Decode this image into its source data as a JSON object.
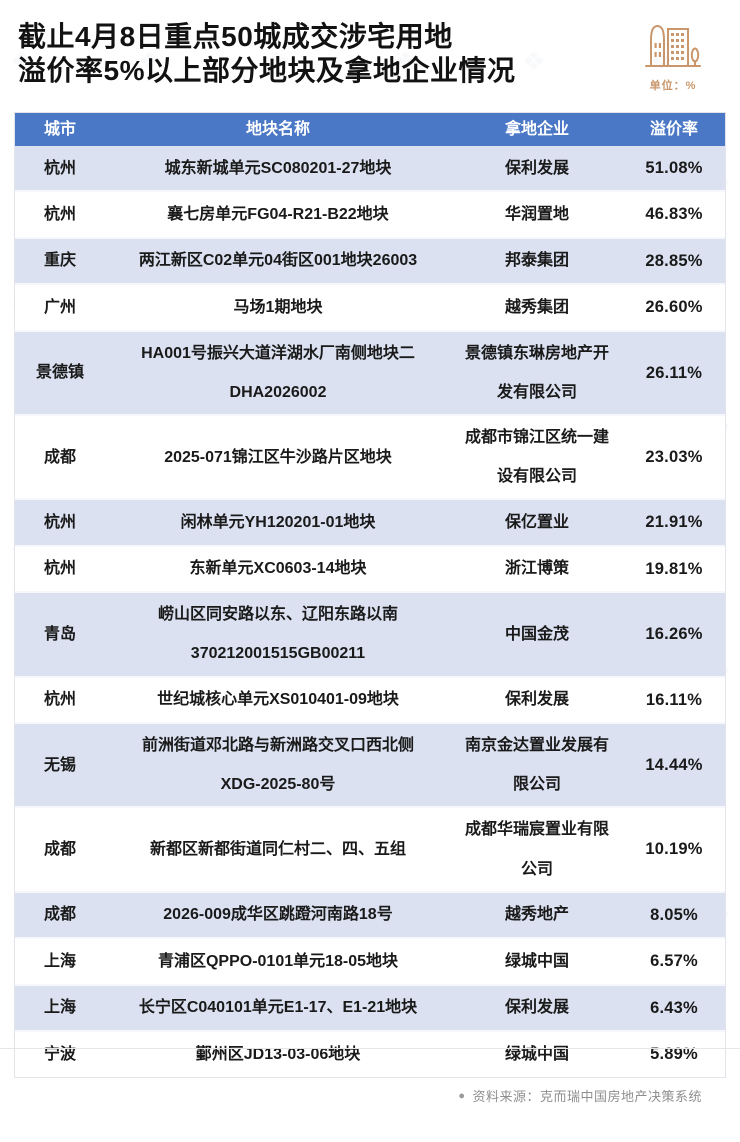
{
  "header": {
    "title_line1": "截止4月8日重点50城成交涉宅用地",
    "title_line2": "溢价率5%以上部分地块及拿地企业情况",
    "unit_label": "单位：%"
  },
  "chart_data": {
    "type": "table",
    "title": "截止4月8日重点50城成交涉宅用地溢价率5%以上部分地块及拿地企业情况",
    "unit": "%",
    "columns": [
      "城市",
      "地块名称",
      "拿地企业",
      "溢价率"
    ],
    "rows": [
      {
        "city": "杭州",
        "plot": "城东新城单元SC080201-27地块",
        "company": "保利发展",
        "premium": "51.08%",
        "premium_value": 51.08
      },
      {
        "city": "杭州",
        "plot": "襄七房单元FG04-R21-B22地块",
        "company": "华润置地",
        "premium": "46.83%",
        "premium_value": 46.83
      },
      {
        "city": "重庆",
        "plot": "两江新区C02单元04街区001地块26003",
        "company": "邦泰集团",
        "premium": "28.85%",
        "premium_value": 28.85
      },
      {
        "city": "广州",
        "plot": "马场1期地块",
        "company": "越秀集团",
        "premium": "26.60%",
        "premium_value": 26.6
      },
      {
        "city": "景德镇",
        "plot": "HA001号振兴大道洋湖水厂南侧地块二\nDHA2026002",
        "company": "景德镇东琳房地产开发有限公司",
        "premium": "26.11%",
        "premium_value": 26.11
      },
      {
        "city": "成都",
        "plot": "2025-071锦江区牛沙路片区地块",
        "company": "成都市锦江区统一建设有限公司",
        "premium": "23.03%",
        "premium_value": 23.03
      },
      {
        "city": "杭州",
        "plot": "闲林单元YH120201-01地块",
        "company": "保亿置业",
        "premium": "21.91%",
        "premium_value": 21.91
      },
      {
        "city": "杭州",
        "plot": "东新单元XC0603-14地块",
        "company": "浙江博策",
        "premium": "19.81%",
        "premium_value": 19.81
      },
      {
        "city": "青岛",
        "plot": "崂山区同安路以东、辽阳东路以南\n370212001515GB00211",
        "company": "中国金茂",
        "premium": "16.26%",
        "premium_value": 16.26
      },
      {
        "city": "杭州",
        "plot": "世纪城核心单元XS010401-09地块",
        "company": "保利发展",
        "premium": "16.11%",
        "premium_value": 16.11
      },
      {
        "city": "无锡",
        "plot": "前洲街道邓北路与新洲路交叉口西北侧\nXDG-2025-80号",
        "company": "南京金达置业发展有限公司",
        "premium": "14.44%",
        "premium_value": 14.44
      },
      {
        "city": "成都",
        "plot": "新都区新都街道同仁村二、四、五组",
        "company": "成都华瑞宸置业有限公司",
        "premium": "10.19%",
        "premium_value": 10.19
      },
      {
        "city": "成都",
        "plot": "2026-009成华区跳蹬河南路18号",
        "company": "越秀地产",
        "premium": "8.05%",
        "premium_value": 8.05
      },
      {
        "city": "上海",
        "plot": "青浦区QPPO-0101单元18-05地块",
        "company": "绿城中国",
        "premium": "6.57%",
        "premium_value": 6.57
      },
      {
        "city": "上海",
        "plot": "长宁区C040101单元E1-17、E1-21地块",
        "company": "保利发展",
        "premium": "6.43%",
        "premium_value": 6.43
      },
      {
        "city": "宁波",
        "plot": "鄞州区JD13-03-06地块",
        "company": "绿城中国",
        "premium": "5.89%",
        "premium_value": 5.89
      }
    ]
  },
  "footer": {
    "bullet": "●",
    "source": "资料来源：克而瑞中国房地产决策系统"
  },
  "colors": {
    "header_bg": "#4a78c6",
    "row_alt_bg": "#dbe1f1",
    "accent_orange": "#c9976b",
    "title_text": "#121212",
    "body_text": "#1a1a1a",
    "source_text": "#8f8f8f"
  }
}
